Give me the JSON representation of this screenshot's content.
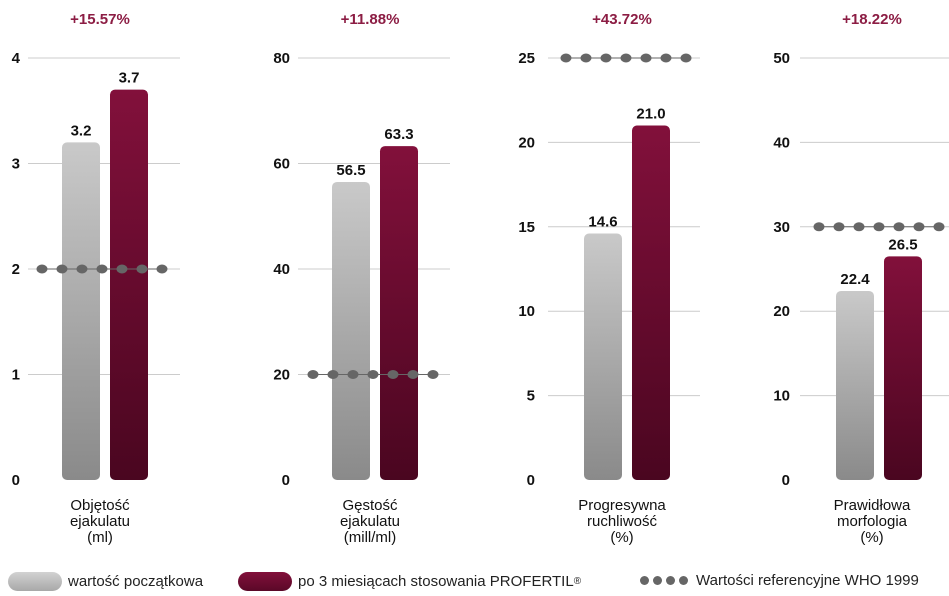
{
  "colors": {
    "baseline_top": "#c9c9c9",
    "baseline_bottom": "#8a8a8a",
    "after_top": "#82103b",
    "after_bottom": "#4a0620",
    "change_label": "#8c1d44",
    "reference_dots": "#666666",
    "grid": "#cccccc"
  },
  "chart_data": [
    {
      "type": "bar",
      "change_label": "+15.57%",
      "category_label": [
        "Objętość",
        "ejakulatu",
        "(ml)"
      ],
      "ylim": [
        0,
        4
      ],
      "yticks": [
        "0",
        "1",
        "2",
        "3",
        "4"
      ],
      "baseline": 3.2,
      "baseline_label": "3.2",
      "after": 3.7,
      "after_label": "3.7",
      "reference": 2
    },
    {
      "type": "bar",
      "change_label": "+11.88%",
      "category_label": [
        "Gęstość",
        "ejakulatu",
        "(mill/ml)"
      ],
      "ylim": [
        0,
        80
      ],
      "yticks": [
        "0",
        "20",
        "40",
        "60",
        "80"
      ],
      "baseline": 56.5,
      "baseline_label": "56.5",
      "after": 63.3,
      "after_label": "63.3",
      "reference": 20
    },
    {
      "type": "bar",
      "change_label": "+43.72%",
      "category_label": [
        "Progresywna",
        "ruchliwość",
        "(%)"
      ],
      "ylim": [
        0,
        25
      ],
      "yticks": [
        "0",
        "5",
        "10",
        "15",
        "20",
        "25"
      ],
      "baseline": 14.6,
      "baseline_label": "14.6",
      "after": 21.0,
      "after_label": "21.0",
      "reference": 25
    },
    {
      "type": "bar",
      "change_label": "+18.22%",
      "category_label": [
        "Prawidłowa",
        "morfologia",
        "(%)"
      ],
      "ylim": [
        0,
        50
      ],
      "yticks": [
        "0",
        "10",
        "20",
        "30",
        "40",
        "50"
      ],
      "baseline": 22.4,
      "baseline_label": "22.4",
      "after": 26.5,
      "after_label": "26.5",
      "reference": 30
    }
  ],
  "legend": {
    "baseline": "wartość początkowa",
    "after": "po 3 miesiącach stosowania PROFERTIL",
    "after_mark": "®",
    "reference": "Wartości referencyjne WHO 1999"
  }
}
